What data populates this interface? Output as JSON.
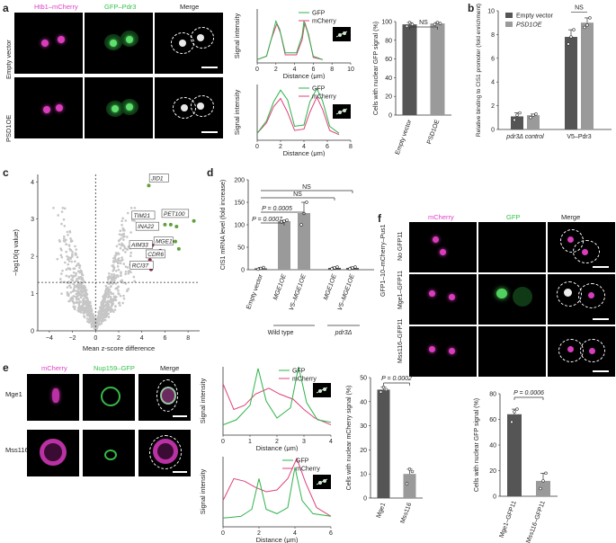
{
  "panels": {
    "a": "a",
    "b": "b",
    "c": "c",
    "d": "d",
    "e": "e",
    "f": "f"
  },
  "a": {
    "col_labels": [
      "Htb1–mCherry",
      "GFP–Pdr3",
      "Merge"
    ],
    "row_labels": [
      "Empty vector",
      "PSD1OE"
    ],
    "colors": {
      "magenta": "#e040c8",
      "green": "#33c24a"
    },
    "profile1": {
      "ylabel": "Signal intensity",
      "xlabel": "Distance (μm)",
      "legend": [
        "GFP",
        "mCherry"
      ],
      "xticks": [
        "0",
        "2",
        "4",
        "6",
        "8",
        "10"
      ],
      "xmax": 10,
      "gfp": [
        [
          0,
          5
        ],
        [
          1,
          10
        ],
        [
          1.6,
          40
        ],
        [
          2,
          62
        ],
        [
          2.4,
          50
        ],
        [
          3,
          15
        ],
        [
          4.2,
          15
        ],
        [
          4.8,
          40
        ],
        [
          5,
          62
        ],
        [
          5.4,
          45
        ],
        [
          6,
          10
        ],
        [
          7,
          5
        ]
      ],
      "mch": [
        [
          0,
          5
        ],
        [
          1,
          10
        ],
        [
          1.5,
          35
        ],
        [
          2.1,
          58
        ],
        [
          2.5,
          44
        ],
        [
          3,
          12
        ],
        [
          4.2,
          12
        ],
        [
          4.8,
          34
        ],
        [
          5.1,
          60
        ],
        [
          5.5,
          42
        ],
        [
          6,
          8
        ],
        [
          7,
          5
        ]
      ]
    },
    "profile2": {
      "ylabel": "Signal intensity",
      "xlabel": "Distance (μm)",
      "legend": [
        "GFP",
        "mCherry"
      ],
      "xticks": [
        "0",
        "2",
        "4",
        "6",
        "8"
      ],
      "xmax": 8,
      "gfp": [
        [
          0,
          10
        ],
        [
          0.8,
          28
        ],
        [
          1.4,
          55
        ],
        [
          2,
          72
        ],
        [
          2.6,
          58
        ],
        [
          3.2,
          20
        ],
        [
          4,
          22
        ],
        [
          4.5,
          55
        ],
        [
          5.1,
          74
        ],
        [
          5.6,
          56
        ],
        [
          6.2,
          20
        ],
        [
          7,
          10
        ]
      ],
      "mch": [
        [
          0,
          10
        ],
        [
          0.8,
          25
        ],
        [
          1.4,
          48
        ],
        [
          2,
          60
        ],
        [
          2.6,
          40
        ],
        [
          3.2,
          14
        ],
        [
          4,
          16
        ],
        [
          4.5,
          40
        ],
        [
          5.1,
          62
        ],
        [
          5.6,
          44
        ],
        [
          6.2,
          14
        ],
        [
          7,
          8
        ]
      ]
    },
    "bar": {
      "ylabel": "Cells with nuclear GFP signal (%)",
      "yticks": [
        "0",
        "20",
        "40",
        "60",
        "80",
        "100"
      ],
      "ylim": [
        0,
        100
      ],
      "categories": [
        "Empty vector",
        "PSD1OE"
      ],
      "values": [
        97,
        98
      ],
      "points": [
        [
          95,
          99,
          97
        ],
        [
          97,
          99,
          98
        ]
      ],
      "sig": "NS"
    }
  },
  "b": {
    "ylabel": "Relative binding to CIS1 promoter (fold enrichment)",
    "yticks": [
      "0",
      "2",
      "4",
      "6",
      "8",
      "10"
    ],
    "ylim": [
      0,
      10
    ],
    "legend": [
      "Empty vector",
      "PSD1OE"
    ],
    "groups": [
      "pdr3Δ control",
      "V5–Pdr3"
    ],
    "values": [
      [
        1.1,
        1.2
      ],
      [
        7.8,
        9.0
      ]
    ],
    "points": [
      [
        [
          0.8,
          1.2,
          1.4
        ],
        [
          1.0,
          1.2,
          1.3
        ]
      ],
      [
        [
          7.2,
          7.8,
          8.4
        ],
        [
          8.6,
          8.8,
          9.4
        ]
      ]
    ],
    "sig": "NS",
    "colors": [
      "#555555",
      "#9a9a9a"
    ]
  },
  "c": {
    "ylabel": "−log10(q value)",
    "xlabel": "Mean z-score difference",
    "xticks": [
      "−4",
      "−2",
      "0",
      "2",
      "4",
      "6",
      "8"
    ],
    "yticks": [
      "0",
      "1",
      "2",
      "3",
      "4"
    ],
    "xlim": [
      -5,
      9
    ],
    "ylim": [
      0,
      4.2
    ],
    "genes": [
      {
        "name": "JID1",
        "x": 4.5,
        "y": 3.9
      },
      {
        "name": "TIM21",
        "x": 5.0,
        "y": 2.9
      },
      {
        "name": "PET100",
        "x": 6.2,
        "y": 2.85
      },
      {
        "name": "INA22",
        "x": 5.2,
        "y": 2.7
      },
      {
        "name": "MGE1",
        "x": 6.6,
        "y": 2.4
      },
      {
        "name": "AIM33",
        "x": 4.8,
        "y": 2.3
      },
      {
        "name": "CDR6",
        "x": 5.6,
        "y": 2.15
      },
      {
        "name": "RCI37",
        "x": 4.7,
        "y": 1.9
      }
    ],
    "highlight_green": [
      [
        4.6,
        3.9
      ],
      [
        6.0,
        2.85
      ],
      [
        6.5,
        2.85
      ],
      [
        7.0,
        2.8
      ],
      [
        8.5,
        2.95
      ],
      [
        6.9,
        2.4
      ],
      [
        7.2,
        2.2
      ]
    ],
    "highlight_red": [
      [
        5.2,
        2.75
      ],
      [
        4.9,
        2.3
      ],
      [
        6.6,
        2.4
      ],
      [
        4.7,
        1.9
      ],
      [
        5.6,
        2.15
      ],
      [
        4.8,
        1.65
      ]
    ]
  },
  "d": {
    "ylabel": "CIS1 mRNA level (fold increase)",
    "yticks": [
      "0",
      "50",
      "100",
      "150",
      "200"
    ],
    "ylim": [
      0,
      200
    ],
    "categories": [
      "Empty vector",
      "MGE1OE",
      "V5–MGE1OE",
      "MGE1OE",
      "V5–MGE1OE"
    ],
    "values": [
      3,
      108,
      126,
      4,
      4
    ],
    "points": [
      [
        1,
        3,
        5
      ],
      [
        106,
        108,
        110
      ],
      [
        100,
        125,
        150
      ],
      [
        2,
        4,
        6
      ],
      [
        2,
        4,
        6
      ]
    ],
    "group_labels": [
      "Wild type",
      "pdr3Δ"
    ],
    "sig": [
      "P = 0.0007",
      "P = 0.0005",
      "NS",
      "NS"
    ]
  },
  "e": {
    "col_labels": [
      "mCherry",
      "Nup159–GFP",
      "Merge"
    ],
    "row_labels": [
      "Mge1",
      "Mss116"
    ],
    "profile1": {
      "ylabel": "Signal intensity",
      "xlabel": "Distance (μm)",
      "legend": [
        "GFP",
        "mCherry"
      ],
      "xticks": [
        "0",
        "1",
        "2",
        "3",
        "4"
      ],
      "xmax": 4,
      "gfp": [
        [
          0,
          12
        ],
        [
          0.5,
          18
        ],
        [
          1,
          35
        ],
        [
          1.3,
          78
        ],
        [
          1.6,
          40
        ],
        [
          2,
          20
        ],
        [
          2.5,
          32
        ],
        [
          2.8,
          80
        ],
        [
          3.1,
          38
        ],
        [
          3.5,
          18
        ],
        [
          4,
          15
        ]
      ],
      "mch": [
        [
          0,
          60
        ],
        [
          0.4,
          30
        ],
        [
          0.8,
          35
        ],
        [
          1.2,
          48
        ],
        [
          1.7,
          55
        ],
        [
          2.1,
          48
        ],
        [
          2.6,
          42
        ],
        [
          3,
          30
        ],
        [
          3.4,
          20
        ],
        [
          4,
          12
        ]
      ]
    },
    "profile2": {
      "ylabel": "Signal intensity",
      "xlabel": "Distance (μm)",
      "legend": [
        "GFP",
        "mCherry"
      ],
      "xticks": [
        "0",
        "2",
        "4",
        "6"
      ],
      "xmax": 6,
      "gfp": [
        [
          0,
          10
        ],
        [
          1,
          12
        ],
        [
          1.6,
          20
        ],
        [
          2,
          55
        ],
        [
          2.4,
          20
        ],
        [
          3,
          15
        ],
        [
          3.6,
          22
        ],
        [
          4,
          68
        ],
        [
          4.4,
          30
        ],
        [
          5,
          15
        ],
        [
          6,
          12
        ]
      ],
      "mch": [
        [
          0,
          30
        ],
        [
          0.6,
          55
        ],
        [
          1.2,
          52
        ],
        [
          1.8,
          45
        ],
        [
          2.4,
          40
        ],
        [
          3,
          42
        ],
        [
          3.6,
          55
        ],
        [
          4.1,
          78
        ],
        [
          4.6,
          50
        ],
        [
          5.2,
          22
        ],
        [
          6,
          12
        ]
      ]
    },
    "bar": {
      "ylabel": "Cells with nuclear mCherry signal (%)",
      "yticks": [
        "0",
        "10",
        "20",
        "30",
        "40",
        "50"
      ],
      "ylim": [
        0,
        50
      ],
      "categories": [
        "Mge1",
        "Mss116"
      ],
      "values": [
        45,
        10
      ],
      "points": [
        [
          44,
          46,
          45
        ],
        [
          6,
          12,
          11
        ]
      ],
      "sig": "P = 0.0002"
    }
  },
  "f": {
    "col_labels": [
      "mCherry",
      "GFP",
      "Merge"
    ],
    "row_labels": [
      "No GFP11",
      "Mge1–GFP11",
      "Mss116–GFP11"
    ],
    "side_label": "GFP1–10–mCherry–Pus1",
    "bar": {
      "ylabel": "Cells with nuclear GFP signal (%)",
      "yticks": [
        "0",
        "20",
        "40",
        "60",
        "80"
      ],
      "ylim": [
        0,
        80
      ],
      "categories": [
        "Mge1–GFP11",
        "Mss116–GFP11"
      ],
      "values": [
        64,
        12
      ],
      "points": [
        [
          58,
          66,
          68
        ],
        [
          6,
          12,
          18
        ]
      ],
      "sig": "P = 0.0006"
    }
  }
}
